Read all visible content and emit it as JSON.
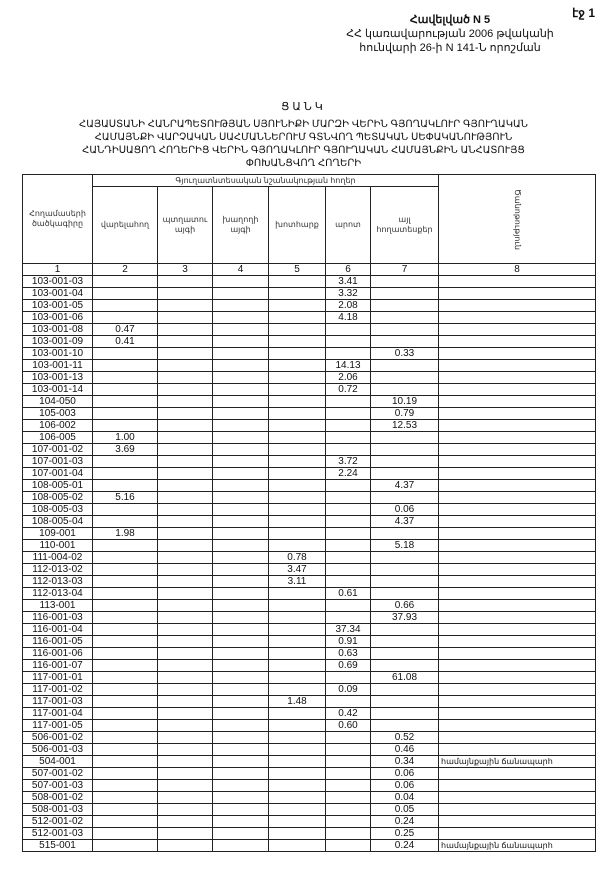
{
  "page_label": "էջ 1",
  "header": {
    "line1": "Հավելված N 5",
    "line2": "ՀՀ կառավարության 2006 թվականի",
    "line3": "հունվարի 26-ի N 141-Ն որոշման"
  },
  "title": "ՑԱՆԿ",
  "subtitle": [
    "ՀԱՅԱՍՏԱՆԻ ՀԱՆՐԱՊԵՏՈՒԹՅԱՆ ՍՅՈՒՆԻՔԻ ՄԱՐԶԻ ՎԵՐԻՆ ԳՅՈՂԱԿԼՈՒՐ ԳՅՈՒՂԱԿԱՆ",
    "ՀԱՄԱՅՆՔԻ ՎԱՐՉԱԿԱՆ ՍԱՀՄԱՆՆԵՐՈՒՄ ԳՏՆՎՈՂ ՊԵՏԱԿԱՆ ՍԵՓԱԿԱՆՈՒԹՅՈՒՆ",
    "ՀԱՆԴԻՍԱՑՈՂ ՀՈՂԵՐԻՑ ՎԵՐԻՆ ԳՅՈՂԱԿԼՈՒՐ ԳՅՈՒՂԱԿԱՆ ՀԱՄԱՅՆՔԻՆ ԱՆՀԱՏՈՒՅՑ",
    "ՓՈԽԱՆՑՎՈՂ ՀՈՂԵՐԻ"
  ],
  "table": {
    "col1_header": "Հողամասերի ծածկագիրը",
    "group_header": "Գյուղատնտեսական նշանակության հողեր",
    "col_headers": [
      "վարելահող",
      "պտղատու այգի",
      "խաղողի այգի",
      "խոտհարք",
      "արոտ",
      "այլ հողատեսքեր"
    ],
    "col8_header": "Ծանոթություն",
    "col_numbers": [
      "1",
      "2",
      "3",
      "4",
      "5",
      "6",
      "7",
      "8"
    ],
    "rows": [
      [
        "103-001-03",
        "",
        "",
        "",
        "",
        "3.41",
        "",
        ""
      ],
      [
        "103-001-04",
        "",
        "",
        "",
        "",
        "3.32",
        "",
        ""
      ],
      [
        "103-001-05",
        "",
        "",
        "",
        "",
        "2.08",
        "",
        ""
      ],
      [
        "103-001-06",
        "",
        "",
        "",
        "",
        "4.18",
        "",
        ""
      ],
      [
        "103-001-08",
        "0.47",
        "",
        "",
        "",
        "",
        "",
        ""
      ],
      [
        "103-001-09",
        "0.41",
        "",
        "",
        "",
        "",
        "",
        ""
      ],
      [
        "103-001-10",
        "",
        "",
        "",
        "",
        "",
        "0.33",
        ""
      ],
      [
        "103-001-11",
        "",
        "",
        "",
        "",
        "14.13",
        "",
        ""
      ],
      [
        "103-001-13",
        "",
        "",
        "",
        "",
        "2.06",
        "",
        ""
      ],
      [
        "103-001-14",
        "",
        "",
        "",
        "",
        "0.72",
        "",
        ""
      ],
      [
        "104-050",
        "",
        "",
        "",
        "",
        "",
        "10.19",
        ""
      ],
      [
        "105-003",
        "",
        "",
        "",
        "",
        "",
        "0.79",
        ""
      ],
      [
        "106-002",
        "",
        "",
        "",
        "",
        "",
        "12.53",
        ""
      ],
      [
        "106-005",
        "1.00",
        "",
        "",
        "",
        "",
        "",
        ""
      ],
      [
        "107-001-02",
        "3.69",
        "",
        "",
        "",
        "",
        "",
        ""
      ],
      [
        "107-001-03",
        "",
        "",
        "",
        "",
        "3.72",
        "",
        ""
      ],
      [
        "107-001-04",
        "",
        "",
        "",
        "",
        "2.24",
        "",
        ""
      ],
      [
        "108-005-01",
        "",
        "",
        "",
        "",
        "",
        "4.37",
        ""
      ],
      [
        "108-005-02",
        "5.16",
        "",
        "",
        "",
        "",
        "",
        ""
      ],
      [
        "108-005-03",
        "",
        "",
        "",
        "",
        "",
        "0.06",
        ""
      ],
      [
        "108-005-04",
        "",
        "",
        "",
        "",
        "",
        "4.37",
        ""
      ],
      [
        "109-001",
        "1.98",
        "",
        "",
        "",
        "",
        "",
        ""
      ],
      [
        "110-001",
        "",
        "",
        "",
        "",
        "",
        "5.18",
        ""
      ],
      [
        "111-004-02",
        "",
        "",
        "",
        "0.78",
        "",
        "",
        ""
      ],
      [
        "112-013-02",
        "",
        "",
        "",
        "3.47",
        "",
        "",
        ""
      ],
      [
        "112-013-03",
        "",
        "",
        "",
        "3.11",
        "",
        "",
        ""
      ],
      [
        "112-013-04",
        "",
        "",
        "",
        "",
        "0.61",
        "",
        ""
      ],
      [
        "113-001",
        "",
        "",
        "",
        "",
        "",
        "0.66",
        ""
      ],
      [
        "116-001-03",
        "",
        "",
        "",
        "",
        "",
        "37.93",
        ""
      ],
      [
        "116-001-04",
        "",
        "",
        "",
        "",
        "37.34",
        "",
        ""
      ],
      [
        "116-001-05",
        "",
        "",
        "",
        "",
        "0.91",
        "",
        ""
      ],
      [
        "116-001-06",
        "",
        "",
        "",
        "",
        "0.63",
        "",
        ""
      ],
      [
        "116-001-07",
        "",
        "",
        "",
        "",
        "0.69",
        "",
        ""
      ],
      [
        "117-001-01",
        "",
        "",
        "",
        "",
        "",
        "61.08",
        ""
      ],
      [
        "117-001-02",
        "",
        "",
        "",
        "",
        "0.09",
        "",
        ""
      ],
      [
        "117-001-03",
        "",
        "",
        "",
        "1.48",
        "",
        "",
        ""
      ],
      [
        "117-001-04",
        "",
        "",
        "",
        "",
        "0.42",
        "",
        ""
      ],
      [
        "117-001-05",
        "",
        "",
        "",
        "",
        "0.60",
        "",
        ""
      ],
      [
        "506-001-02",
        "",
        "",
        "",
        "",
        "",
        "0.52",
        ""
      ],
      [
        "506-001-03",
        "",
        "",
        "",
        "",
        "",
        "0.46",
        ""
      ],
      [
        "504-001",
        "",
        "",
        "",
        "",
        "",
        "0.34",
        "համայնքային ճանապարհ"
      ],
      [
        "507-001-02",
        "",
        "",
        "",
        "",
        "",
        "0.06",
        ""
      ],
      [
        "507-001-03",
        "",
        "",
        "",
        "",
        "",
        "0.06",
        ""
      ],
      [
        "508-001-02",
        "",
        "",
        "",
        "",
        "",
        "0.04",
        ""
      ],
      [
        "508-001-03",
        "",
        "",
        "",
        "",
        "",
        "0.05",
        ""
      ],
      [
        "512-001-02",
        "",
        "",
        "",
        "",
        "",
        "0.24",
        ""
      ],
      [
        "512-001-03",
        "",
        "",
        "",
        "",
        "",
        "0.25",
        ""
      ],
      [
        "515-001",
        "",
        "",
        "",
        "",
        "",
        "0.24",
        "համայնքային ճանապարհ"
      ]
    ]
  }
}
